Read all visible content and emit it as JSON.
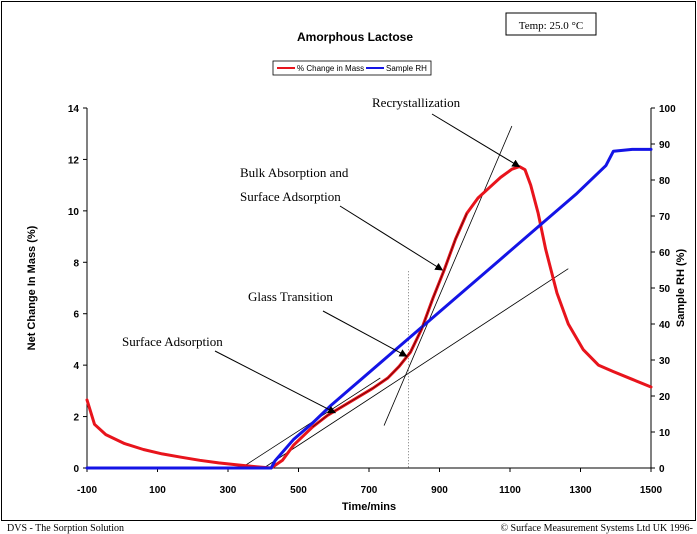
{
  "chart_data": {
    "type": "line",
    "title": "Amorphous Lactose",
    "temp_label": "Temp:  25.0 °C",
    "xlabel": "Time/mins",
    "ylabel_left": "Net Change In Mass (%)",
    "ylabel_right": "Sample RH (%)",
    "x_tick_labels": [
      "-100",
      "100",
      "300",
      "500",
      "700",
      "900",
      "1100",
      "1300",
      "1500"
    ],
    "xlim": [
      -100,
      1500
    ],
    "ylim_left": [
      0,
      14
    ],
    "ylim_right": [
      0,
      100
    ],
    "y_left_ticks": [
      0,
      2,
      4,
      6,
      8,
      10,
      12,
      14
    ],
    "y_right_ticks": [
      0,
      10,
      20,
      30,
      40,
      50,
      60,
      70,
      80,
      90,
      100
    ],
    "legend_placement": "top-center",
    "series": [
      {
        "name": "% Change in Mass",
        "axis": "left",
        "color": "#e8141c",
        "points": [
          [
            0,
            2.65
          ],
          [
            20,
            1.7
          ],
          [
            50,
            1.3
          ],
          [
            100,
            0.95
          ],
          [
            150,
            0.72
          ],
          [
            200,
            0.55
          ],
          [
            250,
            0.42
          ],
          [
            300,
            0.3
          ],
          [
            350,
            0.2
          ],
          [
            400,
            0.12
          ],
          [
            450,
            0.05
          ],
          [
            490,
            0.0
          ],
          [
            520,
            0.3
          ],
          [
            550,
            0.9
          ],
          [
            600,
            1.6
          ],
          [
            640,
            2.05
          ],
          [
            680,
            2.4
          ],
          [
            720,
            2.75
          ],
          [
            760,
            3.1
          ],
          [
            800,
            3.5
          ],
          [
            830,
            3.95
          ],
          [
            860,
            4.5
          ],
          [
            890,
            5.4
          ],
          [
            920,
            6.6
          ],
          [
            950,
            7.7
          ],
          [
            980,
            8.9
          ],
          [
            1010,
            9.9
          ],
          [
            1040,
            10.5
          ],
          [
            1070,
            10.9
          ],
          [
            1100,
            11.3
          ],
          [
            1130,
            11.62
          ],
          [
            1150,
            11.72
          ],
          [
            1165,
            11.6
          ],
          [
            1180,
            11.0
          ],
          [
            1200,
            9.9
          ],
          [
            1220,
            8.5
          ],
          [
            1250,
            6.8
          ],
          [
            1280,
            5.6
          ],
          [
            1320,
            4.6
          ],
          [
            1360,
            4.0
          ],
          [
            1400,
            3.75
          ],
          [
            1450,
            3.45
          ],
          [
            1500,
            3.15
          ]
        ]
      },
      {
        "name": "Sample RH",
        "axis": "right",
        "color": "#1414e6",
        "points": [
          [
            0,
            0
          ],
          [
            490,
            0
          ],
          [
            500,
            2
          ],
          [
            550,
            8
          ],
          [
            600,
            12.5
          ],
          [
            650,
            17.5
          ],
          [
            700,
            22
          ],
          [
            800,
            31
          ],
          [
            900,
            40
          ],
          [
            1000,
            49
          ],
          [
            1100,
            58
          ],
          [
            1200,
            67
          ],
          [
            1300,
            76
          ],
          [
            1380,
            84
          ],
          [
            1400,
            88
          ],
          [
            1450,
            88.5
          ],
          [
            1500,
            88.5
          ]
        ]
      }
    ],
    "tangent_lines": [
      [
        [
          410,
          0
        ],
        [
          780,
          3.5
        ]
      ],
      [
        [
          470,
          0
        ],
        [
          1280,
          7.75
        ]
      ],
      [
        [
          790,
          1.65
        ],
        [
          1130,
          13.3
        ]
      ]
    ],
    "glass_transition_marker_x": 855,
    "glass_transition_marker_top": 7.65,
    "annotations": [
      {
        "text": "Recrystallization",
        "target": [
          1150,
          11.72
        ]
      },
      {
        "text": "Bulk Absorption and",
        "target": [
          945,
          7.7
        ]
      },
      {
        "text": "Surface Adsorption",
        "target": null
      },
      {
        "text": "Glass Transition",
        "target": [
          850,
          4.35
        ]
      },
      {
        "text": "Surface Adsorption",
        "target": [
          660,
          2.15
        ]
      }
    ],
    "footer_left": "DVS - The Sorption Solution",
    "footer_right": "© Surface Measurement Systems Ltd UK 1996-"
  }
}
